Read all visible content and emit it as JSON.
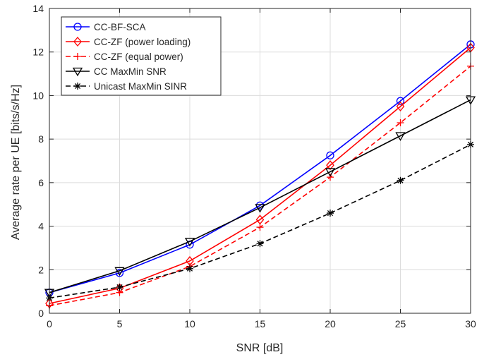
{
  "chart_data": {
    "type": "line",
    "xlabel": "SNR [dB]",
    "ylabel": "Average rate per UE [bits/s/Hz]",
    "xlim": [
      0,
      30
    ],
    "ylim": [
      0,
      14
    ],
    "xticks": [
      0,
      5,
      10,
      15,
      20,
      25,
      30
    ],
    "yticks": [
      0,
      2,
      4,
      6,
      8,
      10,
      12,
      14
    ],
    "grid": true,
    "legend_position": "top-left",
    "x": [
      0,
      5,
      10,
      15,
      20,
      25,
      30
    ],
    "series": [
      {
        "name": "CC-BF-SCA",
        "color": "#0000ff",
        "line_style": "solid",
        "marker": "circle",
        "values": [
          0.95,
          1.85,
          3.15,
          4.95,
          7.25,
          9.75,
          12.35
        ]
      },
      {
        "name": "CC-ZF (power loading)",
        "color": "#ff0000",
        "line_style": "solid",
        "marker": "diamond",
        "values": [
          0.45,
          1.15,
          2.4,
          4.3,
          6.8,
          9.5,
          12.2
        ]
      },
      {
        "name": "CC-ZF (equal power)",
        "color": "#ff0000",
        "line_style": "dashed",
        "marker": "plus",
        "values": [
          0.35,
          0.95,
          2.15,
          3.95,
          6.25,
          8.75,
          11.35
        ]
      },
      {
        "name": "CC MaxMin SNR",
        "color": "#000000",
        "line_style": "solid",
        "marker": "triangle-down",
        "values": [
          0.95,
          1.95,
          3.3,
          4.85,
          6.5,
          8.15,
          9.8
        ]
      },
      {
        "name": "Unicast MaxMin SINR",
        "color": "#000000",
        "line_style": "dashed",
        "marker": "asterisk",
        "values": [
          0.7,
          1.2,
          2.05,
          3.2,
          4.6,
          6.1,
          7.75
        ]
      }
    ]
  }
}
